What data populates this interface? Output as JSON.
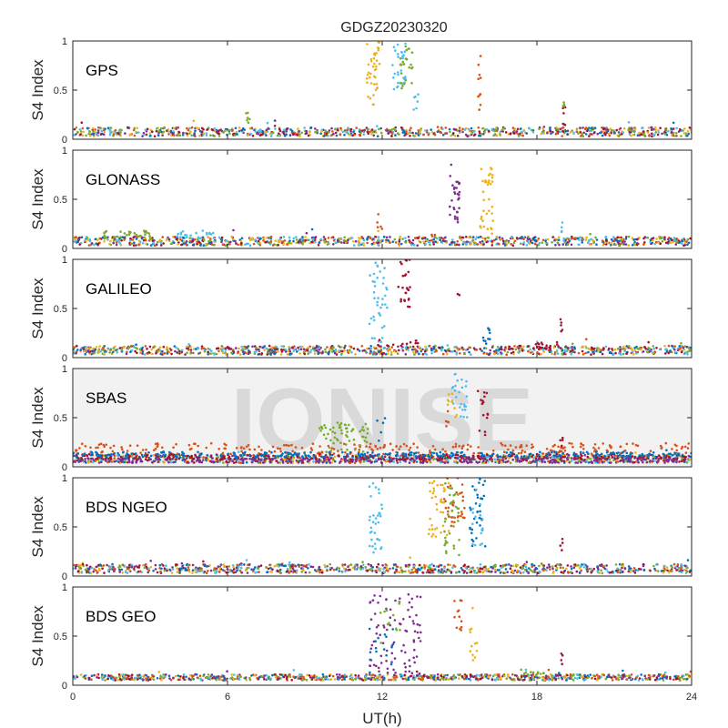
{
  "figure": {
    "title": "GDGZ20230320",
    "xlabel": "UT(h)",
    "watermark": "IONISE"
  },
  "colors": {
    "series": [
      "#0072BD",
      "#D95319",
      "#EDB120",
      "#7E2F8E",
      "#77AC30",
      "#4DBEEE",
      "#A2142F"
    ],
    "axis": "#262626",
    "watermark_band": "#f2f2f2",
    "watermark_text": "#d9d9d9"
  },
  "chart_data": [
    {
      "type": "scatter",
      "panel": "GPS",
      "label": "GPS",
      "ylabel": "S4 Index",
      "xlim": [
        0,
        24
      ],
      "ylim": [
        0,
        1
      ],
      "xticks": [
        0,
        6,
        12,
        18,
        24
      ],
      "yticks": [
        0,
        0.5,
        1
      ],
      "ytick_labels": [
        "0",
        "0.5",
        "1"
      ],
      "baseline_s4": [
        0.03,
        0.12
      ],
      "bursts": [
        {
          "color": 2,
          "x": [
            11.4,
            11.9
          ],
          "y": [
            0.3,
            1.0
          ],
          "n": 40
        },
        {
          "color": 5,
          "x": [
            12.4,
            12.9
          ],
          "y": [
            0.5,
            1.0
          ],
          "n": 30
        },
        {
          "color": 4,
          "x": [
            12.7,
            13.2
          ],
          "y": [
            0.5,
            0.95
          ],
          "n": 25
        },
        {
          "color": 5,
          "x": [
            13.2,
            13.5
          ],
          "y": [
            0.3,
            0.5
          ],
          "n": 6
        },
        {
          "color": 1,
          "x": [
            15.7,
            15.85
          ],
          "y": [
            0.3,
            0.85
          ],
          "n": 10
        },
        {
          "color": 4,
          "x": [
            6.7,
            6.9
          ],
          "y": [
            0.15,
            0.3
          ],
          "n": 6
        },
        {
          "color": 6,
          "x": [
            19.0,
            19.1
          ],
          "y": [
            0.15,
            0.42
          ],
          "n": 6
        },
        {
          "color": 4,
          "x": [
            19.0,
            19.1
          ],
          "y": [
            0.2,
            0.4
          ],
          "n": 4
        }
      ]
    },
    {
      "type": "scatter",
      "panel": "GLONASS",
      "label": "GLONASS",
      "ylabel": "S4 Index",
      "xlim": [
        0,
        24
      ],
      "ylim": [
        0,
        1
      ],
      "xticks": [
        0,
        6,
        12,
        18,
        24
      ],
      "yticks": [
        0,
        0.5,
        1
      ],
      "ytick_labels": [
        "0",
        "0.5",
        "1"
      ],
      "baseline_s4": [
        0.03,
        0.12
      ],
      "bursts": [
        {
          "color": 3,
          "x": [
            14.6,
            15.0
          ],
          "y": [
            0.25,
            0.92
          ],
          "n": 30
        },
        {
          "color": 2,
          "x": [
            15.8,
            16.3
          ],
          "y": [
            0.15,
            0.82
          ],
          "n": 35
        },
        {
          "color": 4,
          "x": [
            1.2,
            3.0
          ],
          "y": [
            0.1,
            0.18
          ],
          "n": 30
        },
        {
          "color": 5,
          "x": [
            4.0,
            5.5
          ],
          "y": [
            0.1,
            0.18
          ],
          "n": 20
        },
        {
          "color": 1,
          "x": [
            11.8,
            12.0
          ],
          "y": [
            0.15,
            0.35
          ],
          "n": 5
        },
        {
          "color": 5,
          "x": [
            18.9,
            19.0
          ],
          "y": [
            0.15,
            0.28
          ],
          "n": 4
        }
      ]
    },
    {
      "type": "scatter",
      "panel": "GALILEO",
      "label": "GALILEO",
      "ylabel": "S4 Index",
      "xlim": [
        0,
        24
      ],
      "ylim": [
        0,
        1
      ],
      "xticks": [
        0,
        6,
        12,
        18,
        24
      ],
      "yticks": [
        0,
        0.5,
        1
      ],
      "ytick_labels": [
        "0",
        "0.5",
        "1"
      ],
      "baseline_s4": [
        0.03,
        0.12
      ],
      "bursts": [
        {
          "color": 5,
          "x": [
            11.5,
            12.2
          ],
          "y": [
            0.15,
            1.0
          ],
          "n": 40
        },
        {
          "color": 6,
          "x": [
            12.6,
            13.1
          ],
          "y": [
            0.5,
            1.0
          ],
          "n": 25
        },
        {
          "color": 6,
          "x": [
            14.9,
            15.0
          ],
          "y": [
            0.55,
            0.65
          ],
          "n": 2
        },
        {
          "color": 0,
          "x": [
            15.9,
            16.2
          ],
          "y": [
            0.12,
            0.3
          ],
          "n": 10
        },
        {
          "color": 6,
          "x": [
            18.9,
            19.0
          ],
          "y": [
            0.2,
            0.4
          ],
          "n": 5
        },
        {
          "color": 6,
          "x": [
            11.8,
            13.5
          ],
          "y": [
            0.1,
            0.18
          ],
          "n": 15
        },
        {
          "color": 6,
          "x": [
            17.0,
            19.0
          ],
          "y": [
            0.08,
            0.16
          ],
          "n": 25
        }
      ]
    },
    {
      "type": "scatter",
      "panel": "SBAS",
      "label": "SBAS",
      "ylabel": "S4 Index",
      "xlim": [
        0,
        24
      ],
      "ylim": [
        0,
        1
      ],
      "xticks": [
        0,
        6,
        12,
        18,
        24
      ],
      "yticks": [
        0,
        0.5,
        1
      ],
      "ytick_labels": [
        "0",
        "0.5",
        "1"
      ],
      "baseline_s4": [
        0.04,
        0.12
      ],
      "bands": [
        {
          "color": 1,
          "y": [
            0.13,
            0.24
          ]
        },
        {
          "color": 6,
          "y": [
            0.07,
            0.13
          ]
        },
        {
          "color": 3,
          "y": [
            0.04,
            0.09
          ]
        },
        {
          "color": 0,
          "y": [
            0.1,
            0.15
          ]
        }
      ],
      "bursts": [
        {
          "color": 4,
          "x": [
            9.5,
            11.5
          ],
          "y": [
            0.15,
            0.45
          ],
          "n": 60
        },
        {
          "color": 5,
          "x": [
            14.7,
            15.3
          ],
          "y": [
            0.5,
            0.95
          ],
          "n": 25
        },
        {
          "color": 2,
          "x": [
            14.5,
            14.9
          ],
          "y": [
            0.5,
            0.75
          ],
          "n": 10
        },
        {
          "color": 1,
          "x": [
            14.4,
            14.6
          ],
          "y": [
            0.4,
            0.6
          ],
          "n": 5
        },
        {
          "color": 6,
          "x": [
            15.7,
            16.1
          ],
          "y": [
            0.3,
            0.8
          ],
          "n": 15
        },
        {
          "color": 0,
          "x": [
            11.8,
            12.2
          ],
          "y": [
            0.25,
            0.5
          ],
          "n": 5
        },
        {
          "color": 6,
          "x": [
            18.9,
            19.0
          ],
          "y": [
            0.2,
            0.4
          ],
          "n": 4
        }
      ]
    },
    {
      "type": "scatter",
      "panel": "BDS NGEO",
      "label": "BDS NGEO",
      "ylabel": "S4 Index",
      "xlim": [
        0,
        24
      ],
      "ylim": [
        0,
        1
      ],
      "xticks": [
        0,
        6,
        12,
        18,
        24
      ],
      "yticks": [
        0,
        0.5,
        1
      ],
      "ytick_labels": [
        "0",
        "0.5",
        "1"
      ],
      "baseline_s4": [
        0.03,
        0.12
      ],
      "bursts": [
        {
          "color": 5,
          "x": [
            11.5,
            12.0
          ],
          "y": [
            0.2,
            0.95
          ],
          "n": 35
        },
        {
          "color": 2,
          "x": [
            13.8,
            14.6
          ],
          "y": [
            0.4,
            1.0
          ],
          "n": 40
        },
        {
          "color": 1,
          "x": [
            14.4,
            15.2
          ],
          "y": [
            0.5,
            1.0
          ],
          "n": 35
        },
        {
          "color": 4,
          "x": [
            14.4,
            15.0
          ],
          "y": [
            0.2,
            0.95
          ],
          "n": 35
        },
        {
          "color": 0,
          "x": [
            15.4,
            16.0
          ],
          "y": [
            0.3,
            1.0
          ],
          "n": 35
        },
        {
          "color": 5,
          "x": [
            15.5,
            15.9
          ],
          "y": [
            0.3,
            0.9
          ],
          "n": 15
        },
        {
          "color": 6,
          "x": [
            18.9,
            19.0
          ],
          "y": [
            0.2,
            0.4
          ],
          "n": 4
        }
      ]
    },
    {
      "type": "scatter",
      "panel": "BDS GEO",
      "label": "BDS GEO",
      "ylabel": "S4 Index",
      "xlim": [
        0,
        24
      ],
      "ylim": [
        0,
        1
      ],
      "xticks": [
        0,
        6,
        12,
        18,
        24
      ],
      "xtick_labels": [
        "0",
        "6",
        "12",
        "18",
        "24"
      ],
      "yticks": [
        0,
        0.5,
        1
      ],
      "ytick_labels": [
        "0",
        "0.5",
        "1"
      ],
      "baseline_s4": [
        0.05,
        0.11
      ],
      "bursts": [
        {
          "color": 3,
          "x": [
            11.5,
            13.5
          ],
          "y": [
            0.1,
            0.95
          ],
          "n": 90
        },
        {
          "color": 0,
          "x": [
            11.5,
            12.5
          ],
          "y": [
            0.2,
            0.6
          ],
          "n": 15
        },
        {
          "color": 4,
          "x": [
            11.8,
            12.7
          ],
          "y": [
            0.4,
            0.9
          ],
          "n": 12
        },
        {
          "color": 1,
          "x": [
            14.8,
            15.1
          ],
          "y": [
            0.5,
            0.87
          ],
          "n": 12
        },
        {
          "color": 2,
          "x": [
            15.4,
            15.7
          ],
          "y": [
            0.2,
            0.8
          ],
          "n": 12
        },
        {
          "color": 4,
          "x": [
            17.5,
            18.5
          ],
          "y": [
            0.1,
            0.14
          ],
          "n": 12
        },
        {
          "color": 6,
          "x": [
            18.9,
            19.0
          ],
          "y": [
            0.15,
            0.35
          ],
          "n": 4
        }
      ]
    }
  ]
}
